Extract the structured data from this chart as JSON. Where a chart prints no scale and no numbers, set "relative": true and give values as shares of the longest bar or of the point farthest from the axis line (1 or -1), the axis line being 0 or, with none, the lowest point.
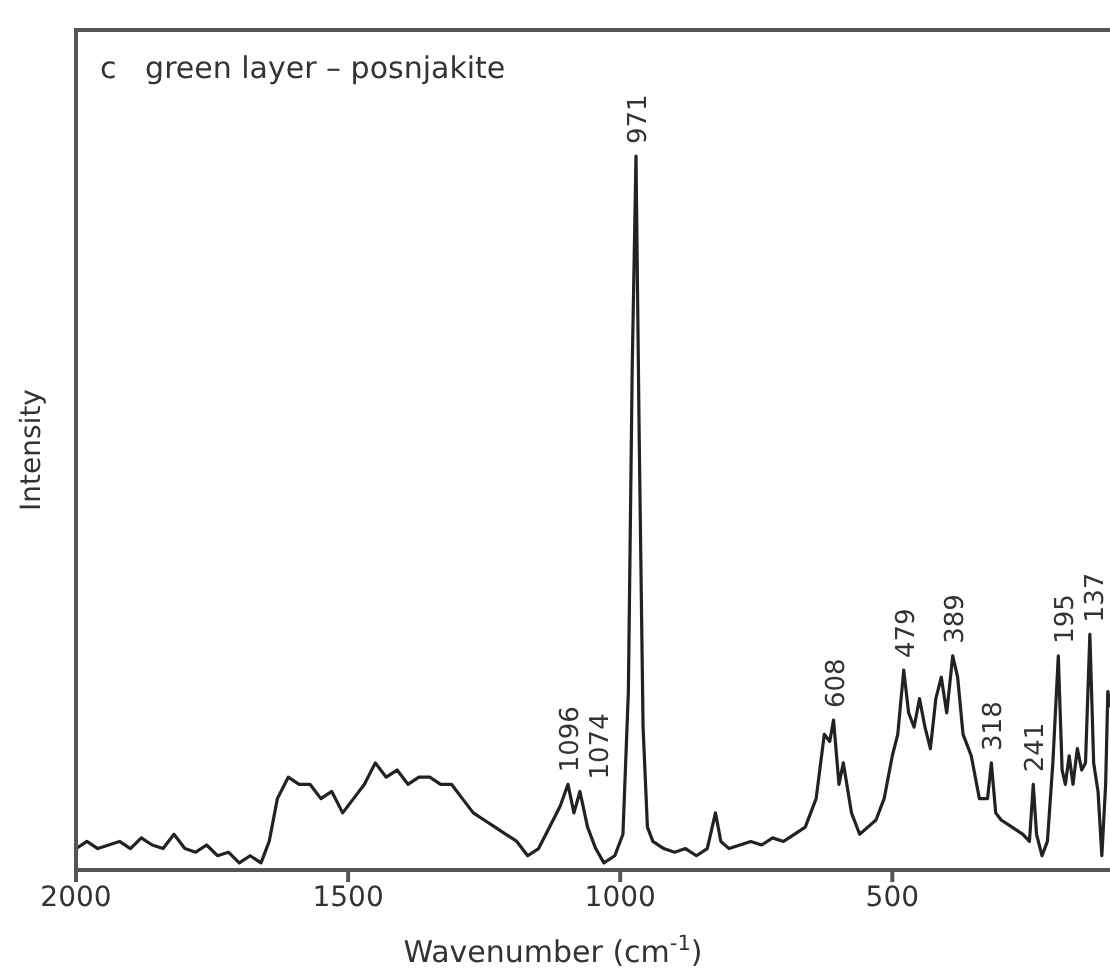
{
  "chart_data": {
    "type": "line",
    "title": "c   green layer – posnjakite",
    "xlabel": "Wavenumber (cm$^{-1}$)",
    "ylabel": "Intensity",
    "relative": true,
    "xlim": [
      2000,
      100
    ],
    "xticks": [
      2000,
      1500,
      1000,
      500
    ],
    "grid": false,
    "marker": "none",
    "line_style": "solid",
    "series": [
      {
        "color": "#222222",
        "x": [
          2000,
          1980,
          1960,
          1940,
          1920,
          1900,
          1880,
          1860,
          1840,
          1820,
          1800,
          1780,
          1760,
          1740,
          1720,
          1700,
          1680,
          1660,
          1645,
          1630,
          1610,
          1590,
          1570,
          1550,
          1530,
          1510,
          1490,
          1470,
          1450,
          1430,
          1410,
          1390,
          1370,
          1350,
          1330,
          1310,
          1290,
          1270,
          1250,
          1230,
          1210,
          1190,
          1170,
          1150,
          1130,
          1110,
          1096,
          1085,
          1074,
          1060,
          1045,
          1030,
          1010,
          995,
          985,
          978,
          971,
          965,
          958,
          950,
          940,
          920,
          900,
          880,
          860,
          840,
          825,
          815,
          800,
          780,
          760,
          740,
          720,
          700,
          680,
          660,
          640,
          625,
          615,
          608,
          598,
          590,
          575,
          560,
          545,
          530,
          515,
          500,
          490,
          479,
          470,
          460,
          450,
          440,
          430,
          420,
          410,
          400,
          389,
          380,
          370,
          355,
          340,
          325,
          318,
          310,
          300,
          280,
          260,
          248,
          241,
          235,
          225,
          215,
          205,
          195,
          188,
          182,
          175,
          168,
          160,
          152,
          145,
          137,
          130,
          122,
          115,
          108,
          104,
          100
        ],
        "values": [
          0.03,
          0.04,
          0.03,
          0.035,
          0.04,
          0.03,
          0.045,
          0.035,
          0.03,
          0.05,
          0.03,
          0.025,
          0.035,
          0.02,
          0.025,
          0.01,
          0.02,
          0.01,
          0.04,
          0.1,
          0.13,
          0.12,
          0.12,
          0.1,
          0.11,
          0.08,
          0.1,
          0.12,
          0.15,
          0.13,
          0.14,
          0.12,
          0.13,
          0.13,
          0.12,
          0.12,
          0.1,
          0.08,
          0.07,
          0.06,
          0.05,
          0.04,
          0.02,
          0.03,
          0.06,
          0.09,
          0.12,
          0.08,
          0.11,
          0.06,
          0.03,
          0.01,
          0.02,
          0.05,
          0.25,
          0.7,
          1,
          0.6,
          0.2,
          0.06,
          0.04,
          0.03,
          0.025,
          0.03,
          0.02,
          0.03,
          0.08,
          0.04,
          0.03,
          0.035,
          0.04,
          0.035,
          0.045,
          0.04,
          0.05,
          0.06,
          0.1,
          0.19,
          0.18,
          0.21,
          0.12,
          0.15,
          0.08,
          0.05,
          0.06,
          0.07,
          0.1,
          0.16,
          0.19,
          0.28,
          0.22,
          0.2,
          0.24,
          0.2,
          0.17,
          0.24,
          0.27,
          0.22,
          0.3,
          0.27,
          0.19,
          0.16,
          0.1,
          0.1,
          0.15,
          0.08,
          0.07,
          0.06,
          0.05,
          0.04,
          0.12,
          0.05,
          0.02,
          0.04,
          0.15,
          0.3,
          0.14,
          0.12,
          0.16,
          0.12,
          0.17,
          0.14,
          0.15,
          0.33,
          0.15,
          0.11,
          0.02,
          0.12,
          0.25,
          0.23
        ]
      }
    ],
    "annotations": [
      {
        "text": "1096",
        "x": 1096,
        "y": 0.12
      },
      {
        "text": "1074",
        "x": 1074,
        "y": 0.11
      },
      {
        "text": "971",
        "x": 971,
        "y": 1
      },
      {
        "text": "608",
        "x": 608,
        "y": 0.21
      },
      {
        "text": "479",
        "x": 479,
        "y": 0.28
      },
      {
        "text": "389",
        "x": 389,
        "y": 0.3
      },
      {
        "text": "318",
        "x": 318,
        "y": 0.15
      },
      {
        "text": "241",
        "x": 241,
        "y": 0.12
      },
      {
        "text": "195",
        "x": 195,
        "y": 0.3
      },
      {
        "text": "137",
        "x": 137,
        "y": 0.33
      }
    ]
  }
}
